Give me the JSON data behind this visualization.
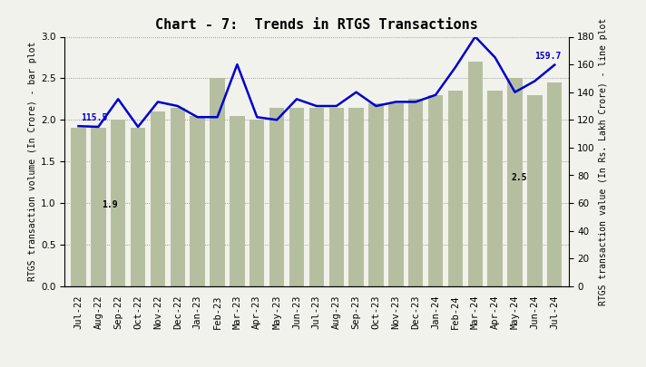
{
  "title": "Chart - 7:  Trends in RTGS Transactions",
  "categories": [
    "Jul-22",
    "Aug-22",
    "Sep-22",
    "Oct-22",
    "Nov-22",
    "Dec-22",
    "Jan-23",
    "Feb-23",
    "Mar-23",
    "Apr-23",
    "May-23",
    "Jun-23",
    "Jul-23",
    "Aug-23",
    "Sep-23",
    "Oct-23",
    "Nov-23",
    "Dec-23",
    "Jan-24",
    "Feb-24",
    "Mar-24",
    "Apr-24",
    "May-24",
    "Jun-24",
    "Jul-24"
  ],
  "bar_values": [
    1.9,
    1.9,
    2.0,
    1.9,
    2.1,
    2.15,
    2.05,
    2.5,
    2.05,
    2.0,
    2.15,
    2.15,
    2.15,
    2.15,
    2.15,
    2.2,
    2.2,
    2.25,
    2.3,
    2.35,
    2.7,
    2.35,
    2.5,
    2.3,
    2.45
  ],
  "line_values": [
    115.5,
    115.0,
    135.0,
    115.0,
    133.0,
    130.0,
    122.0,
    122.0,
    160.0,
    122.0,
    120.0,
    135.0,
    130.0,
    130.0,
    140.0,
    130.0,
    133.0,
    133.0,
    138.0,
    158.0,
    180.0,
    165.0,
    140.0,
    148.0,
    159.7
  ],
  "bar_color": "#b5bfa0",
  "line_color": "#0000cc",
  "line_label_first": "115.5",
  "line_label_last": "159.7",
  "bar_label_first": "1.9",
  "bar_label_last": "2.5",
  "ylabel_left": "RTGS transaction volume (In Crore) - bar plot",
  "ylabel_right": "RTGS transaction value (In Rs. Lakh Crore) - line plot",
  "ylim_left": [
    0.0,
    3.0
  ],
  "ylim_right": [
    0,
    180
  ],
  "yticks_left": [
    0.0,
    0.5,
    1.0,
    1.5,
    2.0,
    2.5,
    3.0
  ],
  "yticks_right": [
    0,
    20,
    40,
    60,
    80,
    100,
    120,
    140,
    160,
    180
  ],
  "background_color": "#f2f2ec",
  "title_fontsize": 11,
  "axis_fontsize": 7,
  "tick_fontsize": 7.5
}
